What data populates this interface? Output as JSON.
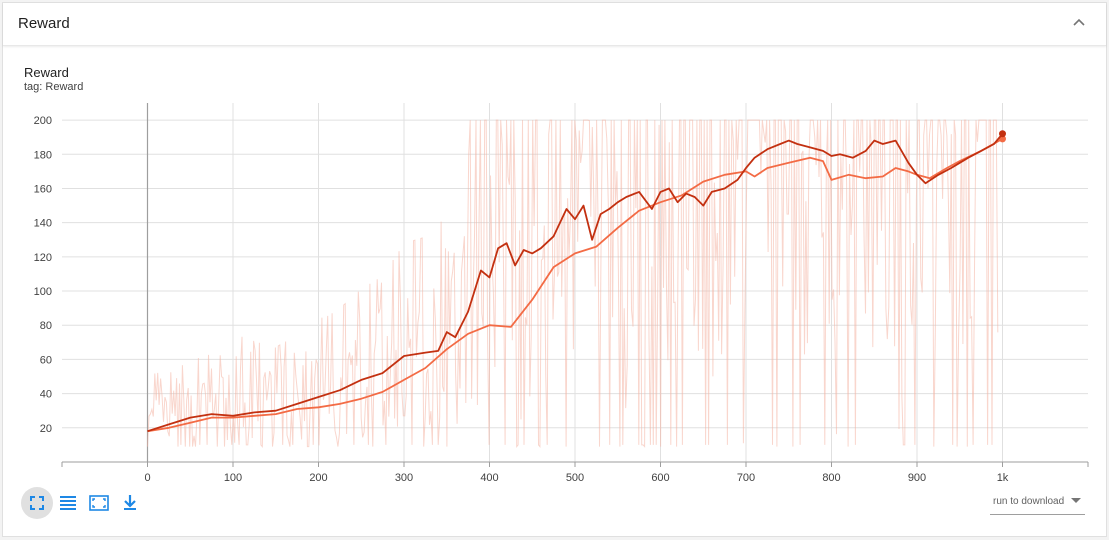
{
  "header": {
    "title": "Reward",
    "collapse_icon": "chevron-up-icon"
  },
  "chart": {
    "title": "Reward",
    "tag": "tag: Reward"
  },
  "toolbar": {
    "icons": [
      "fit-domain-icon",
      "toggle-log-scale-icon",
      "expand-chart-icon",
      "download-icon"
    ],
    "download_label": "run to download"
  },
  "colors": {
    "raw": "#f4b5a4",
    "run_dark": "#c33010",
    "run_light": "#f36b45",
    "grid": "#e0e0e0",
    "icon": "#1e88e5"
  },
  "chart_data": {
    "type": "line",
    "xlim": [
      -100,
      1100
    ],
    "ylim": [
      0,
      210
    ],
    "x_ticks": [
      0,
      100,
      200,
      300,
      400,
      500,
      600,
      700,
      800,
      900,
      1000
    ],
    "x_tick_labels": [
      "0",
      "100",
      "200",
      "300",
      "400",
      "500",
      "600",
      "700",
      "800",
      "900",
      "1k"
    ],
    "y_ticks": [
      20,
      40,
      60,
      80,
      100,
      120,
      140,
      160,
      180,
      200
    ],
    "grid": true,
    "series": [
      {
        "style": "smoothed-dark",
        "x": [
          0,
          25,
          50,
          75,
          100,
          125,
          150,
          175,
          200,
          225,
          250,
          275,
          300,
          325,
          340,
          350,
          360,
          375,
          390,
          400,
          410,
          420,
          430,
          440,
          450,
          460,
          475,
          490,
          500,
          510,
          520,
          530,
          540,
          550,
          560,
          575,
          590,
          600,
          610,
          620,
          630,
          640,
          650,
          660,
          675,
          690,
          700,
          710,
          725,
          740,
          750,
          760,
          775,
          790,
          800,
          810,
          825,
          840,
          850,
          860,
          875,
          890,
          900,
          910,
          925,
          940,
          950,
          960,
          975,
          990,
          1000
        ],
        "y": [
          18,
          22,
          26,
          28,
          27,
          29,
          30,
          34,
          38,
          42,
          48,
          52,
          62,
          64,
          65,
          76,
          73,
          88,
          112,
          108,
          125,
          128,
          115,
          124,
          122,
          125,
          132,
          148,
          142,
          150,
          130,
          145,
          148,
          152,
          155,
          158,
          148,
          158,
          160,
          152,
          157,
          155,
          150,
          158,
          160,
          165,
          172,
          178,
          183,
          186,
          188,
          186,
          184,
          182,
          179,
          180,
          178,
          182,
          188,
          186,
          188,
          175,
          168,
          163,
          168,
          172,
          175,
          178,
          182,
          186,
          192
        ]
      },
      {
        "style": "smoothed-light",
        "x": [
          0,
          25,
          50,
          75,
          100,
          125,
          150,
          175,
          200,
          225,
          250,
          275,
          300,
          325,
          350,
          375,
          400,
          425,
          450,
          475,
          500,
          525,
          550,
          575,
          600,
          625,
          650,
          675,
          700,
          710,
          725,
          750,
          775,
          790,
          800,
          820,
          840,
          860,
          875,
          890,
          900,
          915,
          935,
          950,
          975,
          1000
        ],
        "y": [
          18,
          20,
          23,
          26,
          26,
          27,
          28,
          31,
          32,
          34,
          37,
          41,
          48,
          55,
          66,
          75,
          80,
          79,
          95,
          114,
          122,
          126,
          137,
          147,
          152,
          156,
          164,
          168,
          170,
          167,
          172,
          175,
          178,
          176,
          165,
          168,
          166,
          167,
          172,
          170,
          168,
          166,
          172,
          176,
          182,
          189
        ]
      }
    ]
  }
}
